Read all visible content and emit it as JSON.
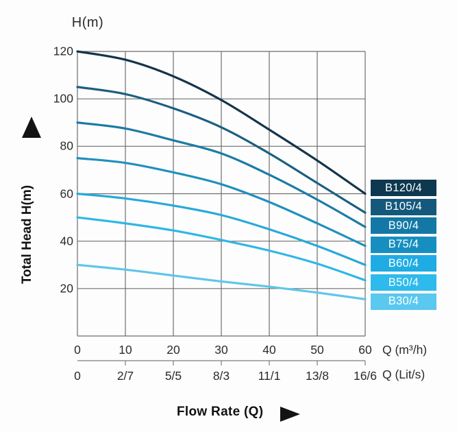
{
  "chart_data": {
    "type": "line",
    "title": "H(m)",
    "ylabel": "Total Head H(m)",
    "xlabel": "Flow Rate (Q)",
    "x_unit_primary": "Q  (m³/h)",
    "x_unit_secondary": "Q  (Lit/s)",
    "xlim": [
      0,
      60
    ],
    "ylim": [
      0,
      120
    ],
    "grid": true,
    "legend_position": "right",
    "grid_color": "#6e6e6e",
    "secondary_axis_color": "#7d7d7d",
    "text_color": "#2b2b2b",
    "x": [
      0,
      10,
      20,
      30,
      40,
      50,
      60
    ],
    "x_ticks_m3h": [
      "0",
      "10",
      "20",
      "30",
      "40",
      "50",
      "60"
    ],
    "x_ticks_lits": [
      "0",
      "2/7",
      "5/5",
      "8/3",
      "11/1",
      "13/8",
      "16/6"
    ],
    "y_ticks": [
      120,
      100,
      80,
      60,
      40,
      20
    ],
    "series": [
      {
        "name": "B120/4",
        "color": "#14344a",
        "badge_color": "#0d3850",
        "values": [
          120,
          116.5,
          109.5,
          99.5,
          87,
          74,
          60
        ]
      },
      {
        "name": "B105/4",
        "color": "#1b5f80",
        "badge_color": "#14597c",
        "values": [
          105,
          102,
          96,
          88,
          77,
          64.5,
          52
        ]
      },
      {
        "name": "B90/4",
        "color": "#1c7ba6",
        "badge_color": "#1478a6",
        "values": [
          90,
          87.5,
          82.5,
          77,
          68,
          57.5,
          46
        ]
      },
      {
        "name": "B75/4",
        "color": "#2090bd",
        "badge_color": "#168fc0",
        "values": [
          75,
          73,
          69,
          64,
          56.5,
          47.5,
          38
        ]
      },
      {
        "name": "B60/4",
        "color": "#27a9da",
        "badge_color": "#1face4",
        "values": [
          60,
          58,
          55,
          51,
          45,
          38,
          30
        ]
      },
      {
        "name": "B50/4",
        "color": "#2fb7e7",
        "badge_color": "#2ebaec",
        "values": [
          50,
          47.5,
          44.5,
          40.5,
          36,
          30.5,
          23.5
        ]
      },
      {
        "name": "B30/4",
        "color": "#5fc6e9",
        "badge_color": "#5ac8ef",
        "values": [
          30,
          28,
          25.5,
          23,
          20.8,
          18.3,
          15.5
        ]
      }
    ]
  }
}
